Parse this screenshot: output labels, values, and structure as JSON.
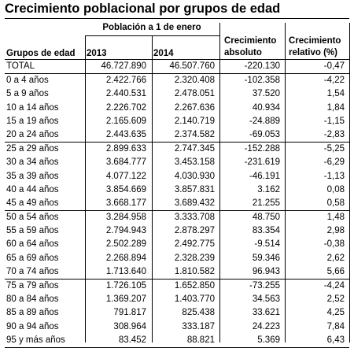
{
  "title": "Crecimiento poblacional por grupos de edad",
  "header": {
    "poblacion": "Población a 1 de enero",
    "grupos": "Grupos de edad",
    "year1": "2013",
    "year2": "2014",
    "abs_line1": "Crecimiento",
    "abs_line2": "absoluto",
    "rel_line1": "Crecimiento",
    "rel_line2": "relativo (%)"
  },
  "rows": [
    {
      "label": "TOTAL",
      "v2013": "46.727.890",
      "v2014": "46.507.760",
      "abs": "-220.130",
      "rel": "-0,47"
    },
    {
      "label": "0 a 4 años",
      "v2013": "2.422.766",
      "v2014": "2.320.408",
      "abs": "-102.358",
      "rel": "-4,22"
    },
    {
      "label": "5 a 9 años",
      "v2013": "2.440.531",
      "v2014": "2.478.051",
      "abs": "37.520",
      "rel": "1,54"
    },
    {
      "label": "10 a 14 años",
      "v2013": "2.226.702",
      "v2014": "2.267.636",
      "abs": "40.934",
      "rel": "1,84"
    },
    {
      "label": "15 a 19 años",
      "v2013": "2.165.609",
      "v2014": "2.140.719",
      "abs": "-24.889",
      "rel": "-1,15"
    },
    {
      "label": "20 a 24 años",
      "v2013": "2.443.635",
      "v2014": "2.374.582",
      "abs": "-69.053",
      "rel": "-2,83"
    },
    {
      "label": "25 a 29 años",
      "v2013": "2.899.633",
      "v2014": "2.747.345",
      "abs": "-152.288",
      "rel": "-5,25"
    },
    {
      "label": "30 a 34 años",
      "v2013": "3.684.777",
      "v2014": "3.453.158",
      "abs": "-231.619",
      "rel": "-6,29"
    },
    {
      "label": "35 a 39 años",
      "v2013": "4.077.122",
      "v2014": "4.030.930",
      "abs": "-46.191",
      "rel": "-1,13"
    },
    {
      "label": "40 a 44 años",
      "v2013": "3.854.669",
      "v2014": "3.857.831",
      "abs": "3.162",
      "rel": "0,08"
    },
    {
      "label": "45 a 49 años",
      "v2013": "3.668.177",
      "v2014": "3.689.432",
      "abs": "21.255",
      "rel": "0,58"
    },
    {
      "label": "50 a 54 años",
      "v2013": "3.284.958",
      "v2014": "3.333.708",
      "abs": "48.750",
      "rel": "1,48"
    },
    {
      "label": "55 a 59 años",
      "v2013": "2.794.943",
      "v2014": "2.878.297",
      "abs": "83.354",
      "rel": "2,98"
    },
    {
      "label": "60 a 64 años",
      "v2013": "2.502.289",
      "v2014": "2.492.775",
      "abs": "-9.514",
      "rel": "-0,38"
    },
    {
      "label": "65 a 69 años",
      "v2013": "2.268.894",
      "v2014": "2.328.239",
      "abs": "59.346",
      "rel": "2,62"
    },
    {
      "label": "70 a 74 años",
      "v2013": "1.713.640",
      "v2014": "1.810.582",
      "abs": "96.943",
      "rel": "5,66"
    },
    {
      "label": "75 a 79 años",
      "v2013": "1.726.105",
      "v2014": "1.652.850",
      "abs": "-73.255",
      "rel": "-4,24"
    },
    {
      "label": "80 a 84 años",
      "v2013": "1.369.207",
      "v2014": "1.403.770",
      "abs": "34.563",
      "rel": "2,52"
    },
    {
      "label": "85 a 89 años",
      "v2013": "791.817",
      "v2014": "825.438",
      "abs": "33.621",
      "rel": "4,25"
    },
    {
      "label": "90 a 94 años",
      "v2013": "308.964",
      "v2014": "333.187",
      "abs": "24.223",
      "rel": "7,84"
    },
    {
      "label": "95 y más años",
      "v2013": "83.452",
      "v2014": "88.821",
      "abs": "5.369",
      "rel": "6,43"
    }
  ]
}
